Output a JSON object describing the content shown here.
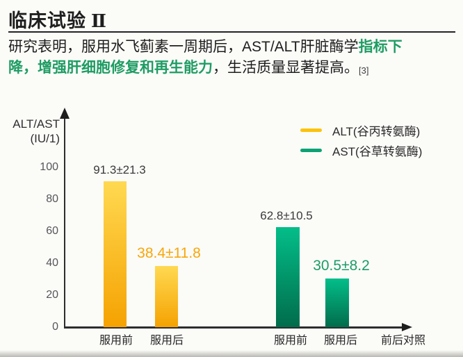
{
  "page": {
    "background": "#fbfbf8"
  },
  "header": {
    "title": "临床试验",
    "title_numeral": "Ⅱ",
    "em_color": "#1e9c63",
    "paragraph_lines": [
      [
        {
          "text": "研究表明，服用水飞蓟素一周期后，AST/ALT肝脏酶学",
          "style": "normal"
        },
        {
          "text": "指标下",
          "style": "em"
        }
      ],
      [
        {
          "text": "降，增强肝细胞修复和再生能力",
          "style": "em"
        },
        {
          "text": "，生活质量显著提高。",
          "style": "normal"
        },
        {
          "text": "[3]",
          "style": "cite"
        }
      ]
    ]
  },
  "chart_data": {
    "type": "bar",
    "title": "",
    "ylabel_lines": [
      "ALT/AST",
      "(IU/1)"
    ],
    "ylabel": "ALT/AST (IU/1)",
    "yticks": [
      0,
      20,
      40,
      60,
      80,
      100
    ],
    "ylim": [
      0,
      110
    ],
    "grid": false,
    "legend_position": "top-right",
    "categories": [
      "服用前",
      "服用后"
    ],
    "x_end_label": "前后对照",
    "series": [
      {
        "name": "ALT(谷丙转氨酶)",
        "legend_color": "#FBC30D",
        "bar_top_color": "#FFD951",
        "bar_bottom_color": "#F5A201",
        "values": [
          91.3,
          38.4
        ],
        "points": [
          {
            "category": "服用前",
            "value": 91.3,
            "label": "91.3±21.3",
            "label_color": "#3A3A3A",
            "label_size": "small"
          },
          {
            "category": "服用后",
            "value": 38.4,
            "label": "38.4±11.8",
            "label_color": "#F7A70A",
            "label_size": "large"
          }
        ]
      },
      {
        "name": "AST(谷草转氨酶)",
        "legend_color": "#0CA273",
        "bar_top_color": "#03BE89",
        "bar_bottom_color": "#016C4B",
        "values": [
          62.8,
          30.5
        ],
        "points": [
          {
            "category": "服用前",
            "value": 62.8,
            "label": "62.8±10.5",
            "label_color": "#3A3A3A",
            "label_size": "small"
          },
          {
            "category": "服用后",
            "value": 30.5,
            "label": "30.5±8.2",
            "label_color": "#1C9C66",
            "label_size": "large"
          }
        ]
      }
    ]
  }
}
